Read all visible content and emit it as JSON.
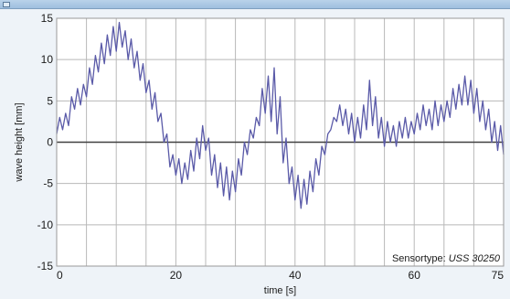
{
  "chart_data": {
    "type": "line",
    "title": "",
    "xlabel": "time [s]",
    "ylabel": "wave height [mm]",
    "xlim": [
      0,
      75
    ],
    "ylim": [
      -15,
      15
    ],
    "x_ticks": [
      0,
      20,
      40,
      60,
      75
    ],
    "y_ticks": [
      -15,
      -10,
      -5,
      0,
      5,
      10,
      15
    ],
    "grid": true,
    "zero_line": true,
    "series_color": "#5a5aa8",
    "annotation": {
      "prefix": "Sensortype: ",
      "model": "USS 30250",
      "position": "bottom-right"
    },
    "series": [
      {
        "x": [
          0,
          0.5,
          1,
          1.5,
          2,
          2.5,
          3,
          3.5,
          4,
          4.5,
          5,
          5.5,
          6,
          6.5,
          7,
          7.5,
          8,
          8.5,
          9,
          9.5,
          10,
          10.5,
          11,
          11.5,
          12,
          12.5,
          13,
          13.5,
          14,
          14.5,
          15,
          15.5,
          16,
          16.5,
          17,
          17.5,
          18,
          18.5,
          19,
          19.5,
          20,
          20.5,
          21,
          21.5,
          22,
          22.5,
          23,
          23.5,
          24,
          24.5,
          25,
          25.5,
          26,
          26.5,
          27,
          27.5,
          28,
          28.5,
          29,
          29.5,
          30,
          30.5,
          31,
          31.5,
          32,
          32.5,
          33,
          33.5,
          34,
          34.5,
          35,
          35.5,
          36,
          36.5,
          37,
          37.5,
          38,
          38.5,
          39,
          39.5,
          40,
          40.5,
          41,
          41.5,
          42,
          42.5,
          43,
          43.5,
          44,
          44.5,
          45,
          45.5,
          46,
          46.5,
          47,
          47.5,
          48,
          48.5,
          49,
          49.5,
          50,
          50.5,
          51,
          51.5,
          52,
          52.5,
          53,
          53.5,
          54,
          54.5,
          55,
          55.5,
          56,
          56.5,
          57,
          57.5,
          58,
          58.5,
          59,
          59.5,
          60,
          60.5,
          61,
          61.5,
          62,
          62.5,
          63,
          63.5,
          64,
          64.5,
          65,
          65.5,
          66,
          66.5,
          67,
          67.5,
          68,
          68.5,
          69,
          69.5,
          70,
          70.5,
          71,
          71.5,
          72,
          72.5,
          73,
          73.5,
          74,
          74.5,
          75
        ],
        "y": [
          1.0,
          3.0,
          1.5,
          3.5,
          2.0,
          5.5,
          4.0,
          6.5,
          4.5,
          7.0,
          5.5,
          9.0,
          7.0,
          10.5,
          8.5,
          12.0,
          9.5,
          13.0,
          10.5,
          14.0,
          11.0,
          14.5,
          11.5,
          13.5,
          10.0,
          12.5,
          9.0,
          11.0,
          7.5,
          9.5,
          6.0,
          7.5,
          4.0,
          6.0,
          2.5,
          3.5,
          0.0,
          1.0,
          -3.0,
          -1.5,
          -4.0,
          -2.0,
          -5.0,
          -2.5,
          -4.5,
          -1.0,
          -3.5,
          0.5,
          -2.0,
          2.0,
          -1.0,
          0.5,
          -4.0,
          -1.5,
          -5.5,
          -2.5,
          -6.5,
          -3.0,
          -7.0,
          -3.5,
          -6.0,
          -2.0,
          -4.0,
          0.0,
          -1.5,
          1.5,
          0.5,
          3.0,
          2.0,
          6.5,
          3.5,
          8.0,
          2.5,
          9.0,
          1.0,
          5.5,
          -2.5,
          0.5,
          -5.0,
          -3.0,
          -7.0,
          -4.0,
          -8.0,
          -4.5,
          -7.5,
          -3.5,
          -6.0,
          -2.0,
          -4.0,
          -0.5,
          -1.5,
          1.0,
          1.5,
          3.0,
          2.5,
          4.5,
          2.0,
          4.0,
          1.0,
          3.5,
          0.0,
          3.0,
          0.5,
          4.5,
          1.5,
          7.5,
          2.0,
          5.5,
          0.5,
          3.0,
          -0.5,
          2.5,
          0.0,
          2.0,
          -0.5,
          2.5,
          0.5,
          3.0,
          0.5,
          2.5,
          1.0,
          3.5,
          1.5,
          4.5,
          2.0,
          4.0,
          1.5,
          5.0,
          2.0,
          4.5,
          2.5,
          5.0,
          3.0,
          6.5,
          4.0,
          7.0,
          4.5,
          8.0,
          4.5,
          7.5,
          3.5,
          6.5,
          2.5,
          5.0,
          1.5,
          4.0,
          0.0,
          2.5,
          -1.0,
          2.0,
          -1.5
        ]
      }
    ]
  }
}
